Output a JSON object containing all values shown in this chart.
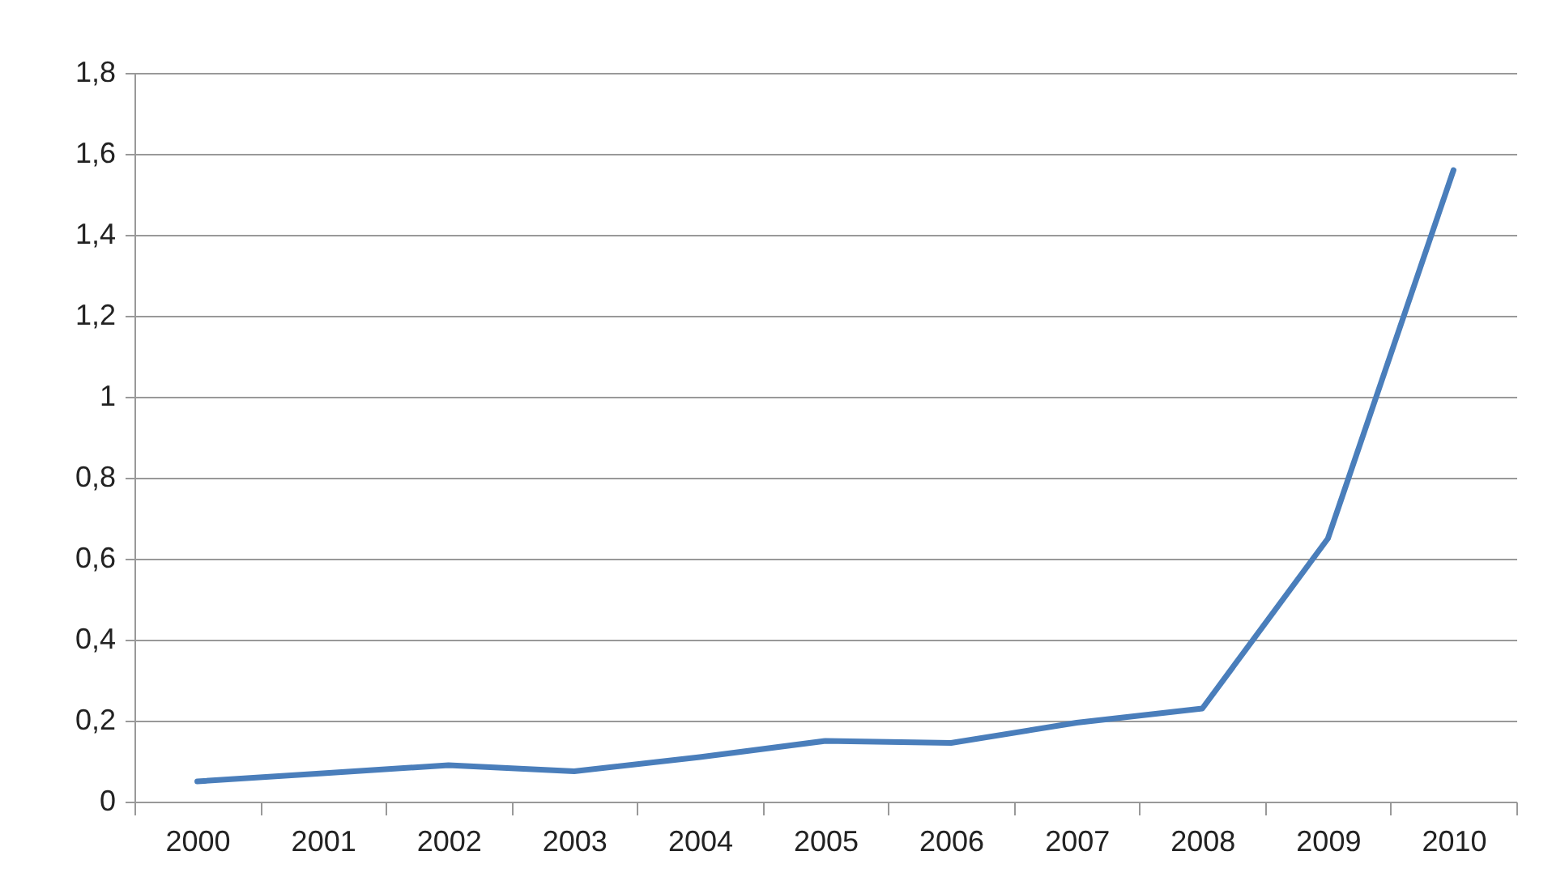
{
  "chart_data": {
    "type": "line",
    "categories": [
      "2000",
      "2001",
      "2002",
      "2003",
      "2004",
      "2005",
      "2006",
      "2007",
      "2008",
      "2009",
      "2010"
    ],
    "series": [
      {
        "color": "#4a7ebb",
        "values": [
          0.05,
          0.07,
          0.09,
          0.075,
          0.11,
          0.15,
          0.145,
          0.195,
          0.23,
          0.65,
          1.56
        ]
      }
    ],
    "ylim": [
      0,
      1.8
    ],
    "yticks": [
      0,
      {
        "value": 0.2,
        "label": "0,2"
      },
      {
        "value": 0.4,
        "label": "0,4"
      },
      {
        "value": 0.6,
        "label": "0,6"
      },
      {
        "value": 0.8,
        "label": "0,8"
      },
      1,
      {
        "value": 1.2,
        "label": "1,2"
      },
      {
        "value": 1.4,
        "label": "1,4"
      },
      {
        "value": 1.6,
        "label": "1,6"
      },
      {
        "value": 1.8,
        "label": "1,8"
      }
    ],
    "grid": "y",
    "legend": false,
    "marker": "none",
    "line_style": "solid"
  }
}
